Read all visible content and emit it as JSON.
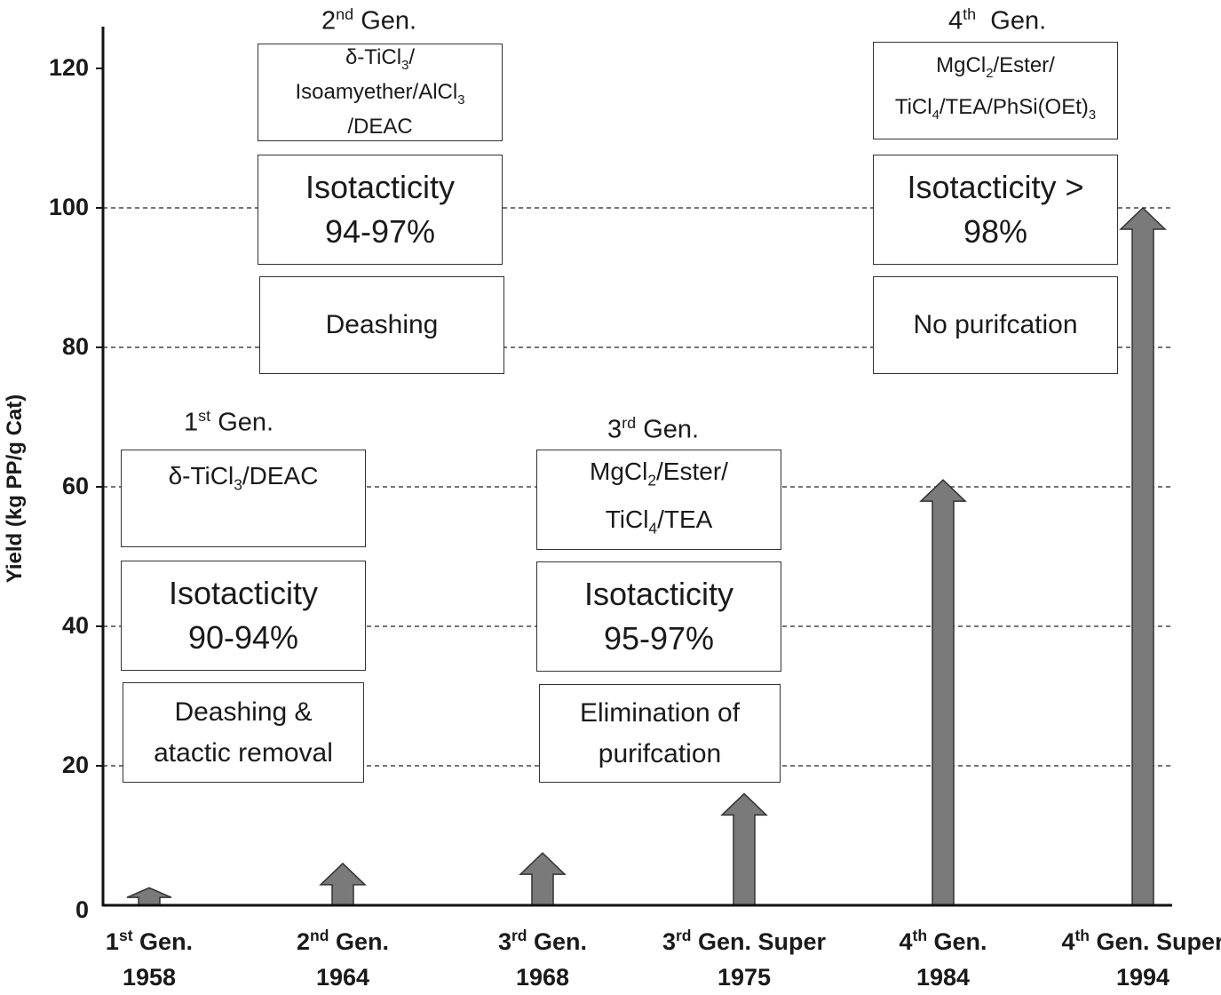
{
  "chart_data": {
    "type": "bar",
    "ylabel": "Yield (kg PP/g Cat)",
    "ylim": [
      0,
      126
    ],
    "yticks": [
      0,
      20,
      40,
      60,
      80,
      100,
      120
    ],
    "gridlines": [
      20,
      40,
      60,
      80,
      100
    ],
    "bar_style": "arrow",
    "bar_color": "#7a7a7a",
    "categories": [
      {
        "gen": "1",
        "sup": "st",
        "label": " Gen.",
        "year": "1958"
      },
      {
        "gen": "2",
        "sup": "nd",
        "label": " Gen.",
        "year": "1964"
      },
      {
        "gen": "3",
        "sup": "rd",
        "label": " Gen.",
        "year": "1968"
      },
      {
        "gen": "3",
        "sup": "rd",
        "label": " Gen. Super",
        "year": "1975"
      },
      {
        "gen": "4",
        "sup": "th",
        "label": " Gen.",
        "year": "1984"
      },
      {
        "gen": "4",
        "sup": "th",
        "label": " Gen. Super",
        "year": "1994"
      }
    ],
    "values": [
      2.5,
      6,
      7.5,
      16,
      61,
      100
    ]
  },
  "annotations": {
    "gen1": {
      "title": "Gen.",
      "num": "1",
      "sup": "st",
      "catalyst": "δ-TiCl3/DEAC",
      "isotacticity": [
        "Isotacticity",
        "90-94%"
      ],
      "purification": [
        "Deashing &",
        "atactic removal"
      ]
    },
    "gen2": {
      "title": "Gen.",
      "num": "2",
      "sup": "nd",
      "catalyst": "δ-TiCl3/ Isoamyether/AlCl3 /DEAC",
      "isotacticity": [
        "Isotacticity",
        "94-97%"
      ],
      "purification": [
        "Deashing"
      ]
    },
    "gen3": {
      "title": "Gen.",
      "num": "3",
      "sup": "rd",
      "catalyst": "MgCl2/Ester/ TiCl4/TEA",
      "isotacticity": [
        "Isotacticity",
        "95-97%"
      ],
      "purification": [
        "Elimination of",
        "purifcation"
      ]
    },
    "gen4": {
      "title": "Gen.",
      "num": "4",
      "sup": "th",
      "catalyst": "MgCl2/Ester/ TiCl4/TEA/PhSi(OEt)3",
      "isotacticity": [
        "Isotacticity >",
        "98%"
      ],
      "purification": [
        "No purifcation"
      ]
    }
  }
}
